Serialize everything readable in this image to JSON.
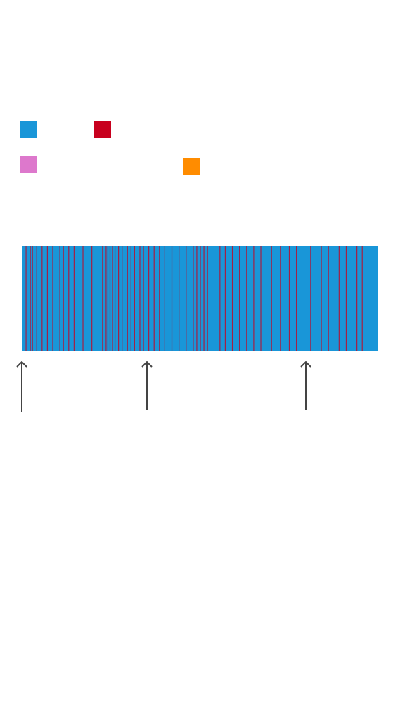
{
  "chart_data": {
    "type": "strip",
    "legend_colors": [
      "#1996d8",
      "#c8001e",
      "#dd78cc",
      "#ff8c00"
    ],
    "background_color": "#1996d8",
    "xlim": [
      0,
      100
    ],
    "series": [
      {
        "color": "#c8001e",
        "x": [
          1,
          2.2,
          2.8,
          4,
          5.5,
          7,
          8.5,
          10.5,
          11.5,
          13,
          14.5,
          17,
          19.5,
          22.5,
          23.5,
          24,
          24.6,
          25.3,
          26,
          27,
          28,
          29.5,
          30.5,
          31.5,
          33,
          34,
          35.5,
          37,
          38.5,
          40,
          42,
          44,
          46,
          48,
          49,
          50,
          51,
          52,
          55.5,
          57,
          59,
          61,
          63,
          65,
          67,
          70,
          72.5,
          75,
          77,
          81,
          84,
          86,
          89,
          91,
          94,
          95.5
        ]
      }
    ]
  }
}
